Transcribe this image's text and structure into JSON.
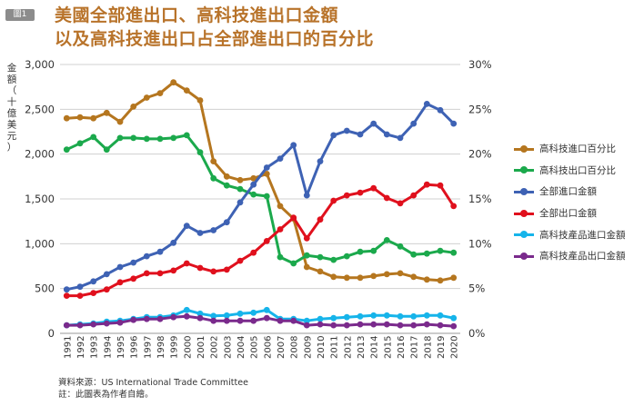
{
  "figure": {
    "badge": "圖1",
    "title_lines": [
      "美國全部進出口、高科技進出口金額",
      "以及高科技進出口占全部進出口的百分比"
    ],
    "source": "資料來源：US International Trade Committee",
    "note": "註：此圖表為作者自繪。"
  },
  "chart_data": {
    "type": "line",
    "y_left": {
      "label": "金額（十億美元）",
      "range": [
        0,
        3000
      ],
      "ticks": [
        0,
        500,
        1000,
        1500,
        2000,
        2500,
        3000
      ],
      "tick_labels": [
        "0",
        "500",
        "1,000",
        "1,500",
        "2,000",
        "2,500",
        "3,000"
      ]
    },
    "y_right": {
      "range": [
        0,
        30
      ],
      "ticks": [
        0,
        5,
        10,
        15,
        20,
        25,
        30
      ],
      "tick_labels": [
        "0%",
        "5%",
        "10%",
        "15%",
        "20%",
        "25%",
        "30%"
      ]
    },
    "x": [
      "1991",
      "1992",
      "1993",
      "1994",
      "1995",
      "1996",
      "1997",
      "1998",
      "1999",
      "2000",
      "2001",
      "2002",
      "2003",
      "2004",
      "2005",
      "2006",
      "2007",
      "2008",
      "2009",
      "2010",
      "2011",
      "2012",
      "2013",
      "2014",
      "2015",
      "2016",
      "2017",
      "2018",
      "2019",
      "2020"
    ],
    "grid": "horizontal",
    "legend_position": "right",
    "series": [
      {
        "name": "高科技進口百分比",
        "axis": "right",
        "color": "#b5761f",
        "values": [
          24.0,
          24.1,
          24.0,
          24.6,
          23.6,
          25.3,
          26.3,
          26.8,
          28.0,
          27.1,
          26.0,
          19.2,
          17.5,
          17.1,
          17.3,
          17.8,
          14.2,
          12.8,
          7.4,
          6.9,
          6.3,
          6.2,
          6.2,
          6.4,
          6.6,
          6.7,
          6.3,
          6.0,
          5.9,
          6.2
        ]
      },
      {
        "name": "高科技出口百分比",
        "axis": "right",
        "color": "#1ba94c",
        "values": [
          20.5,
          21.2,
          21.9,
          20.5,
          21.8,
          21.8,
          21.7,
          21.7,
          21.8,
          22.1,
          20.2,
          17.3,
          16.5,
          16.1,
          15.5,
          15.3,
          8.5,
          7.8,
          8.7,
          8.5,
          8.2,
          8.6,
          9.1,
          9.2,
          10.4,
          9.7,
          8.8,
          8.9,
          9.2,
          9.0
        ]
      },
      {
        "name": "全部進口金額",
        "axis": "left",
        "color": "#3e62b4",
        "values": [
          490,
          520,
          580,
          660,
          740,
          790,
          860,
          910,
          1010,
          1200,
          1120,
          1150,
          1240,
          1460,
          1660,
          1850,
          1950,
          2100,
          1540,
          1920,
          2210,
          2260,
          2220,
          2340,
          2220,
          2180,
          2340,
          2560,
          2490,
          2340
        ]
      },
      {
        "name": "全部出口金額",
        "axis": "left",
        "color": "#e0101d",
        "values": [
          420,
          420,
          450,
          490,
          570,
          610,
          670,
          670,
          700,
          780,
          730,
          690,
          710,
          810,
          900,
          1030,
          1160,
          1290,
          1060,
          1270,
          1480,
          1540,
          1570,
          1620,
          1510,
          1450,
          1540,
          1660,
          1650,
          1420
        ]
      },
      {
        "name": "高科技產品進口金額",
        "axis": "left",
        "color": "#16b4ea",
        "values": [
          90,
          100,
          110,
          130,
          140,
          160,
          180,
          180,
          200,
          260,
          220,
          195,
          200,
          220,
          230,
          260,
          160,
          160,
          140,
          160,
          170,
          180,
          190,
          200,
          200,
          190,
          190,
          200,
          200,
          170
        ]
      },
      {
        "name": "高科技產品出口金額",
        "axis": "left",
        "color": "#7a2a8c",
        "values": [
          90,
          90,
          100,
          110,
          120,
          150,
          160,
          160,
          180,
          190,
          170,
          140,
          140,
          140,
          140,
          170,
          140,
          140,
          90,
          100,
          90,
          90,
          100,
          100,
          100,
          90,
          90,
          100,
          90,
          80
        ]
      }
    ]
  }
}
